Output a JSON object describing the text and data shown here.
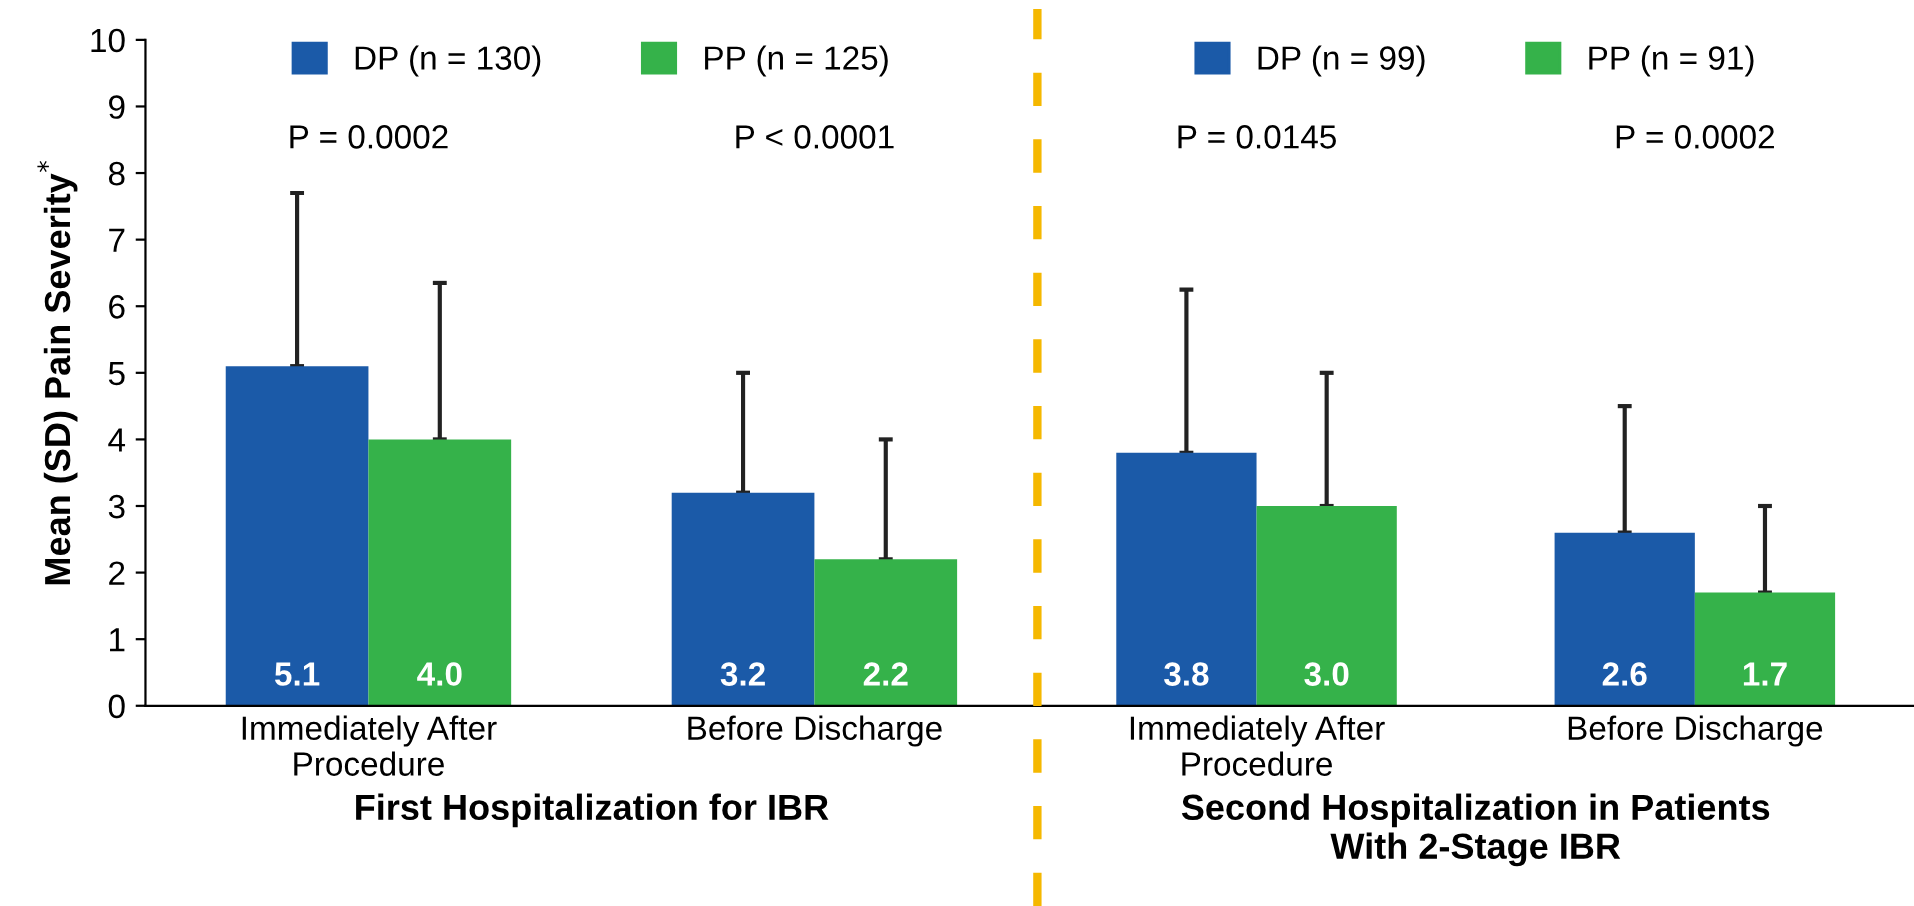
{
  "chart_data": [
    {
      "type": "bar",
      "categories": [
        "Immediately After\nProcedure",
        "Before Discharge"
      ],
      "xlabel": "First Hospitalization for IBR",
      "ylabel": "Mean (SD) Pain Severity$^{*}$",
      "ylim": [
        0,
        10
      ],
      "yticks": [
        0,
        1,
        2,
        3,
        4,
        5,
        6,
        7,
        8,
        9,
        10
      ],
      "legend": "top",
      "grid": false,
      "series": [
        {
          "name": "DP (n = 130)",
          "color": "#1b5aa8",
          "values": [
            5.1,
            3.2
          ],
          "value_labels": [
            "5.1",
            "3.2"
          ],
          "errors": [
            [
              5.1,
              7.7
            ],
            [
              3.2,
              5.0
            ]
          ]
        },
        {
          "name": "PP (n = 125)",
          "color": "#35b24a",
          "values": [
            4.0,
            2.2
          ],
          "value_labels": [
            "4.0",
            "2.2"
          ],
          "errors": [
            [
              4.0,
              6.35
            ],
            [
              2.2,
              4.0
            ]
          ]
        }
      ],
      "annotations": [
        "P = 0.0002",
        "P < 0.0001"
      ]
    },
    {
      "type": "bar",
      "categories": [
        "Immediately After\nProcedure",
        "Before Discharge"
      ],
      "xlabel": "Second Hospitalization in Patients\nWith 2-Stage IBR",
      "ylim": [
        0,
        10
      ],
      "tick_labels": "x",
      "legend": "top",
      "grid": false,
      "series": [
        {
          "name": "DP (n = 99)",
          "color": "#1b5aa8",
          "values": [
            3.8,
            2.6
          ],
          "value_labels": [
            "3.8",
            "2.6"
          ],
          "errors": [
            [
              3.8,
              6.25
            ],
            [
              2.6,
              4.5
            ]
          ]
        },
        {
          "name": "PP (n = 91)",
          "color": "#35b24a",
          "values": [
            3.0,
            1.7
          ],
          "value_labels": [
            "3.0",
            "1.7"
          ],
          "errors": [
            [
              3.0,
              5.0
            ],
            [
              1.7,
              3.0
            ]
          ]
        }
      ],
      "annotations": [
        "P = 0.0145",
        "P = 0.0002"
      ]
    }
  ]
}
